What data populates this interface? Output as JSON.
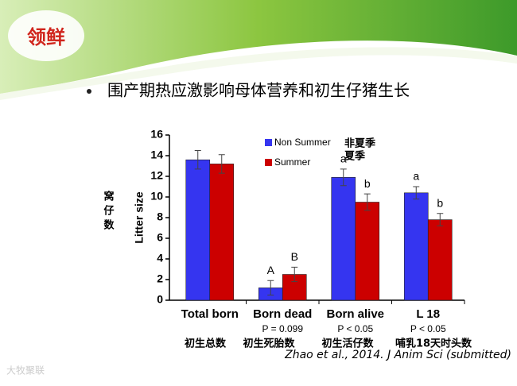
{
  "logo": "领鲜",
  "watermark": "大牧聚联",
  "chart_data": {
    "type": "bar",
    "title": "围产期热应激影响母体营养和初生仔猪生长",
    "y_label": "Litter size",
    "y_label_cn": "窝仔数",
    "categories": [
      "Total born",
      "Born dead",
      "Born alive",
      "L 18"
    ],
    "categories_cn": [
      "初生总数",
      "初生死胎数",
      "初生活仔数",
      "哺乳18天时头数"
    ],
    "p_values": [
      null,
      "P = 0.099",
      "P < 0.05",
      "P < 0.05"
    ],
    "series": [
      {
        "name": "Non Summer",
        "name_cn": "非夏季",
        "color": "#3535f0",
        "values": [
          13.6,
          1.2,
          11.9,
          10.4
        ],
        "errors": [
          0.9,
          0.7,
          0.8,
          0.6
        ],
        "labels": [
          null,
          "A",
          "a",
          "a"
        ]
      },
      {
        "name": "Summer",
        "name_cn": "夏季",
        "color": "#cc0000",
        "values": [
          13.2,
          2.5,
          9.5,
          7.8
        ],
        "errors": [
          0.9,
          0.7,
          0.8,
          0.6
        ],
        "labels": [
          null,
          "B",
          "b",
          "b"
        ]
      }
    ],
    "ylim": [
      0,
      16
    ],
    "yticks": [
      0,
      2,
      4,
      6,
      8,
      10,
      12,
      14,
      16
    ],
    "citation": "Zhao et al., 2014. J Anim Sci (submitted)"
  }
}
